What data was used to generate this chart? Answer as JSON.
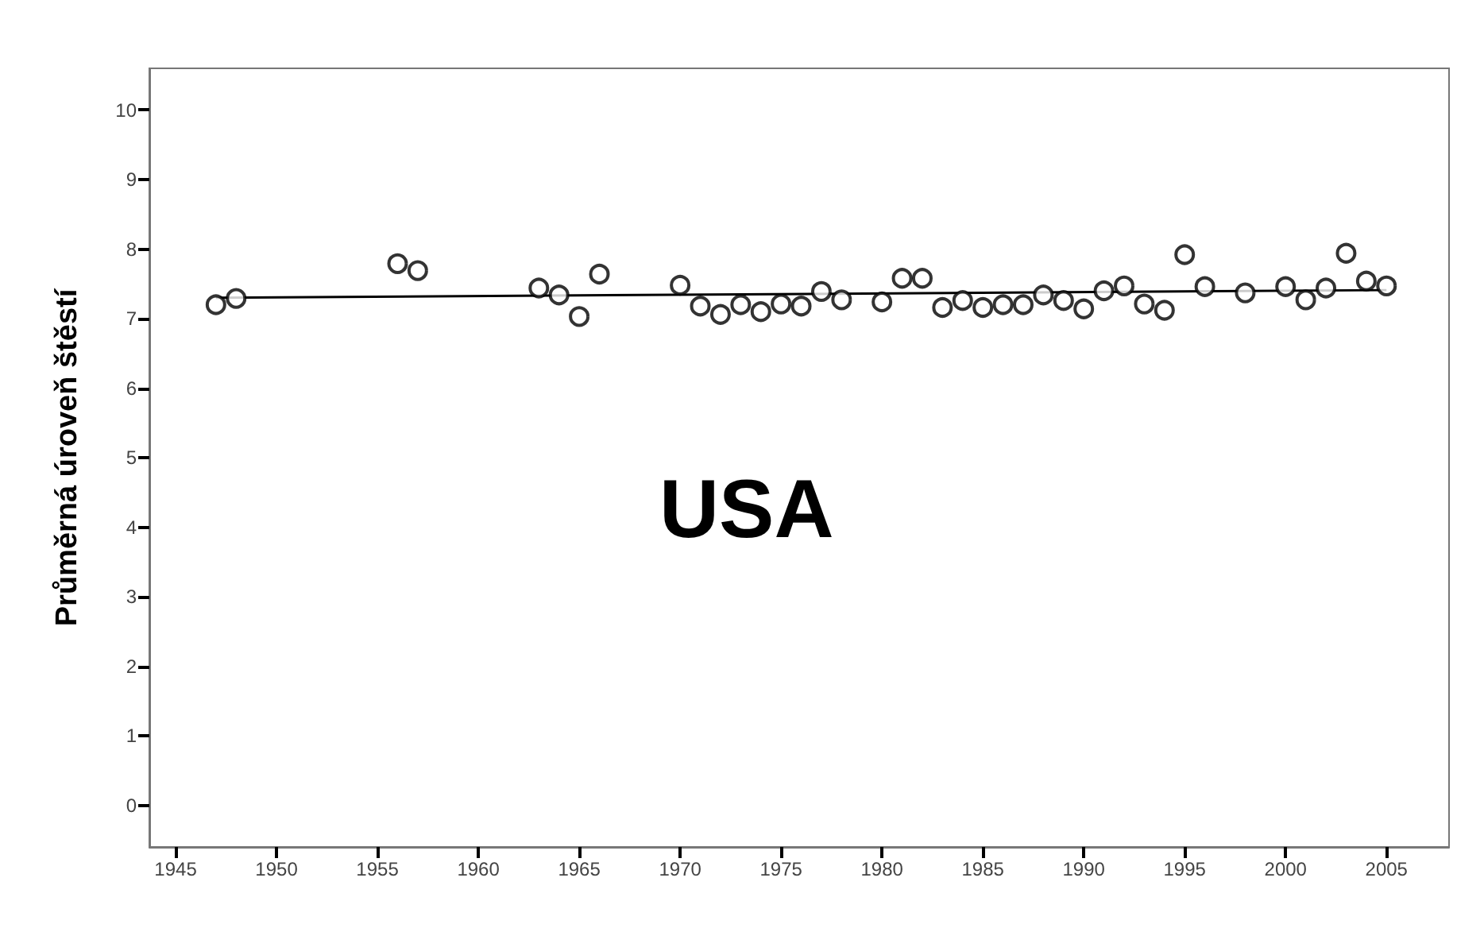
{
  "chart_data": {
    "type": "scatter",
    "ylabel": "Průměrná úroveň štěstí",
    "annotations": [
      "USA"
    ],
    "marker": "circle",
    "grid": false,
    "xlim": [
      1943.7,
      2008.1
    ],
    "xticks": [
      1945,
      1950,
      1955,
      1960,
      1965,
      1970,
      1975,
      1980,
      1985,
      1990,
      1995,
      2000,
      2005
    ],
    "ylim": [
      -0.6,
      10.6
    ],
    "yticks": [
      0,
      1,
      2,
      3,
      4,
      5,
      6,
      7,
      8,
      9,
      10
    ],
    "series": [
      {
        "color": "#000000",
        "x": [
          1947,
          1948,
          1956,
          1957,
          1963,
          1964,
          1965,
          1966,
          1970,
          1971,
          1972,
          1973,
          1974,
          1975,
          1976,
          1977,
          1978,
          1980,
          1981,
          1982,
          1983,
          1984,
          1985,
          1986,
          1987,
          1988,
          1989,
          1990,
          1991,
          1992,
          1993,
          1994,
          1995,
          1996,
          1998,
          2000,
          2001,
          2002,
          2003,
          2004,
          2005
        ],
        "values": [
          7.2,
          7.29,
          7.79,
          7.69,
          7.44,
          7.34,
          7.03,
          7.64,
          7.48,
          7.18,
          7.06,
          7.2,
          7.1,
          7.21,
          7.18,
          7.39,
          7.27,
          7.24,
          7.58,
          7.58,
          7.16,
          7.26,
          7.16,
          7.2,
          7.2,
          7.34,
          7.26,
          7.14,
          7.4,
          7.47,
          7.21,
          7.12,
          7.92,
          7.46,
          7.37,
          7.46,
          7.27,
          7.44,
          7.94,
          7.54,
          7.47
        ]
      },
      {
        "type": "line",
        "color": "#000000",
        "marker": "none",
        "x": [
          1947,
          2005
        ],
        "values": [
          7.3,
          7.41
        ]
      }
    ]
  }
}
